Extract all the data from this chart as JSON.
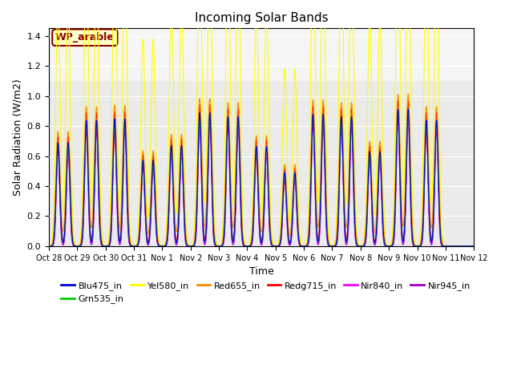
{
  "title": "Incoming Solar Bands",
  "xlabel": "Time",
  "ylabel": "Solar Radiation (W/m2)",
  "annotation_text": "WP_arable",
  "annotation_color": "#8B0000",
  "annotation_bg": "#FFFFCC",
  "annotation_border": "#8B0000",
  "ylim": [
    0,
    1.45
  ],
  "yticks": [
    0.0,
    0.2,
    0.4,
    0.6,
    0.8,
    1.0,
    1.2,
    1.4
  ],
  "bg_color": "#EBEBEB",
  "bg_upper_color": "#F5F5F5",
  "fig_color": "#FFFFFF",
  "legend_entries": [
    {
      "label": "Blu475_in",
      "color": "#0000DD"
    },
    {
      "label": "Grn535_in",
      "color": "#00CC00"
    },
    {
      "label": "Yel580_in",
      "color": "#FFFF00"
    },
    {
      "label": "Red655_in",
      "color": "#FF8800"
    },
    {
      "label": "Redg715_in",
      "color": "#FF0000"
    },
    {
      "label": "Nir840_in",
      "color": "#FF00FF"
    },
    {
      "label": "Nir945_in",
      "color": "#9900CC"
    }
  ],
  "n_days": 15,
  "day_labels": [
    "Oct 28",
    "Oct 29",
    "Oct 30",
    "Oct 31",
    "Nov 1",
    "Nov 2",
    "Nov 3",
    "Nov 4",
    "Nov 5",
    "Nov 6",
    "Nov 7",
    "Nov 8",
    "Nov 9",
    "Nov 10",
    "Nov 11",
    "Nov 12"
  ],
  "day_peak_heights_yel": [
    0.83,
    1.01,
    1.02,
    0.69,
    0.81,
    1.07,
    1.04,
    0.8,
    0.59,
    1.06,
    1.04,
    0.76,
    1.1,
    1.01,
    0.0
  ],
  "peak_fracs": {
    "yel": 1.0,
    "red655": 0.92,
    "redg715": 0.88,
    "nir840": 0.82,
    "nir945": 0.77,
    "grn535": 0.82,
    "blu475": 0.83
  },
  "double_peak_offsets": [
    -0.18,
    0.18
  ],
  "peak_sigma": 0.07,
  "n_points_per_day": 288
}
